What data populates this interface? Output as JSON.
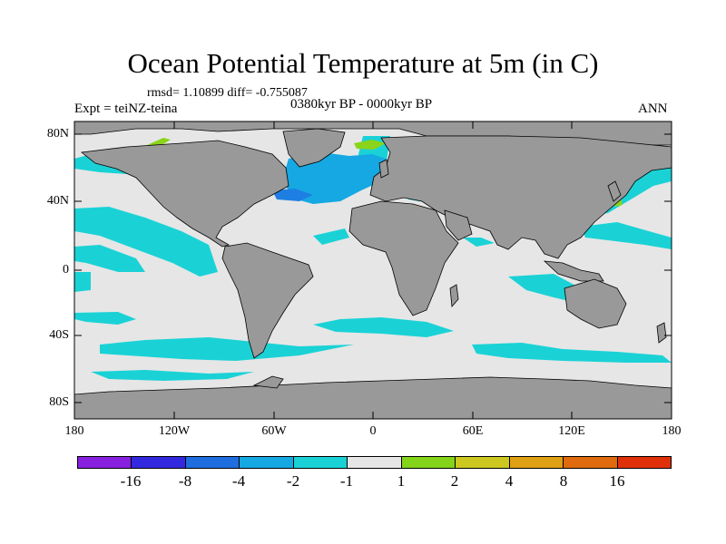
{
  "title": "Ocean Potential Temperature at 5m (in C)",
  "stats": "rmsd= 1.10899 diff= -0.755087",
  "experiment": "Expt = teiNZ-teina",
  "period": "0380kyr BP - 0000kyr BP",
  "season": "ANN",
  "lat_labels": [
    "80N",
    "40N",
    "0",
    "40S",
    "80S"
  ],
  "lon_labels": [
    "180",
    "120W",
    "60W",
    "0",
    "60E",
    "120E",
    "180"
  ],
  "colors": {
    "land": "#999999",
    "neutral": "#e6e6e6",
    "cyan": "#1ad2d6",
    "light_blue": "#15a8e2",
    "blue": "#1e7fe2",
    "green": "#8ad41a"
  },
  "legend": {
    "colors": [
      "#8820e0",
      "#3228e0",
      "#1e6ee0",
      "#15a8e2",
      "#1ad2d6",
      "#e6e6e6",
      "#84d41a",
      "#ccc820",
      "#e0a014",
      "#e06a0e",
      "#e0300a"
    ],
    "labels": [
      "-16",
      "-8",
      "-4",
      "-2",
      "-1",
      "1",
      "2",
      "4",
      "8",
      "16"
    ]
  }
}
